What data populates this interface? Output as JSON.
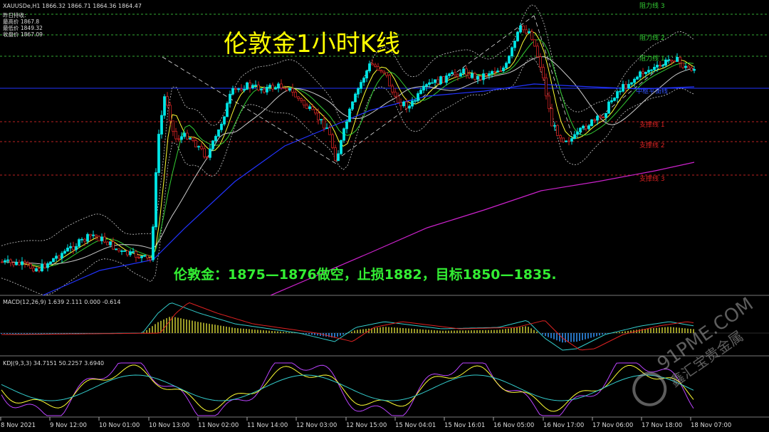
{
  "header": {
    "symbol_line": "XAUUSDe,H1  1866.32 1866.71 1864.36 1864.47",
    "info_lines": [
      "昨日持收:",
      "最高价 1867.8",
      "最低价 1849.32",
      "收盘价 1867.09"
    ]
  },
  "title": "伦敦金1小时K线",
  "trade_text": "伦敦金：1875—1876做空，止损1882，目标1850—1835.",
  "levels": [
    {
      "label": "阻力线 3",
      "color": "#33cc33"
    },
    {
      "label": "阻力线 2",
      "color": "#33cc33"
    },
    {
      "label": "阻力线 1",
      "color": "#33cc33"
    },
    {
      "label": "支撑线 1",
      "color": "#dd2222"
    },
    {
      "label": "支撑线 2",
      "color": "#dd2222"
    },
    {
      "label": "支撑线 3",
      "color": "#dd2222"
    }
  ],
  "pivot_label": "中枢平衡线",
  "macd_label": "MACD(12,26,9) 1.639 2.111 0.000 -0.614",
  "kdj_label": "KDJ(9,3,3) 34.7151 50.2257 3.6940",
  "x_ticks": [
    "8 Nov 2021",
    "9 Nov 12:00",
    "10 Nov 01:00",
    "10 Nov 13:00",
    "11 Nov 02:00",
    "11 Nov 14:00",
    "12 Nov 03:00",
    "12 Nov 15:00",
    "15 Nov 04:01",
    "15 Nov 16:01",
    "16 Nov 05:00",
    "16 Nov 17:00",
    "17 Nov 06:00",
    "17 Nov 18:00",
    "18 Nov 07:00"
  ],
  "watermark": {
    "line1": "91PME.COM",
    "line2": "鑫汇宝贵金属"
  },
  "colors": {
    "up": "#00e5e5",
    "down": "#cc2222",
    "ma_blue": "#2233ff",
    "ma_magenta": "#cc22cc",
    "bands": "#cccccc",
    "grid_res": "#33cc33",
    "grid_sup": "#dd2222",
    "title": "#ffff00",
    "trade": "#33ee33"
  },
  "chart_data": {
    "type": "line",
    "title": "伦敦金1小时K线",
    "xlabel": "",
    "ylabel": "",
    "x": [
      "8 Nov 2021",
      "9 Nov 12:00",
      "10 Nov 01:00",
      "10 Nov 13:00",
      "11 Nov 02:00",
      "11 Nov 14:00",
      "12 Nov 03:00",
      "12 Nov 15:00",
      "15 Nov 04:01",
      "15 Nov 16:01",
      "16 Nov 05:00",
      "16 Nov 17:00",
      "17 Nov 06:00",
      "17 Nov 18:00",
      "18 Nov 07:00"
    ],
    "series": [
      {
        "name": "XAUUSDe,H1",
        "values": [
          1822,
          1825,
          1827,
          1828,
          1852,
          1861,
          1853,
          1863,
          1865,
          1864,
          1870,
          1852,
          1856,
          1866,
          1864
        ]
      }
    ],
    "grid": true
  }
}
